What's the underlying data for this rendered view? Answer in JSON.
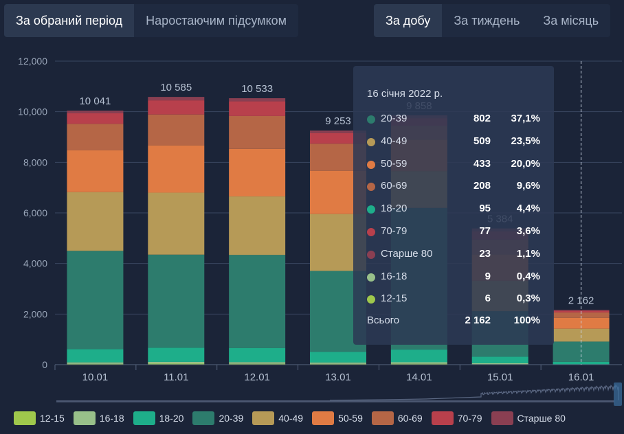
{
  "tabs_left": [
    {
      "label": "За обраний період",
      "active": true
    },
    {
      "label": "Наростаючим підсумком",
      "active": false
    }
  ],
  "tabs_right": [
    {
      "label": "За добу",
      "active": true
    },
    {
      "label": "За тиждень",
      "active": false
    },
    {
      "label": "За місяць",
      "active": false
    }
  ],
  "chart_data": {
    "type": "bar",
    "stacked": true,
    "title": "",
    "xlabel": "",
    "ylabel": "",
    "ylim": [
      0,
      12000
    ],
    "yticks": [
      "0",
      "2,000",
      "4,000",
      "6,000",
      "8,000",
      "10,000",
      "12,000"
    ],
    "categories": [
      "10.01",
      "11.01",
      "12.01",
      "13.01",
      "14.01",
      "15.01",
      "16.01"
    ],
    "totals": [
      "10 041",
      "10 585",
      "10 533",
      "9 253",
      "9 858",
      "5 384",
      "2 162"
    ],
    "grid": true,
    "legend_position": "bottom",
    "highlighted_category": "16.01",
    "series": [
      {
        "name": "12-15",
        "color": "#9fc84c",
        "values": [
          30,
          40,
          35,
          30,
          35,
          20,
          6
        ]
      },
      {
        "name": "16-18",
        "color": "#98c08a",
        "values": [
          60,
          70,
          65,
          55,
          60,
          35,
          9
        ]
      },
      {
        "name": "18-20",
        "color": "#1eae8a",
        "values": [
          520,
          560,
          560,
          420,
          500,
          260,
          95
        ]
      },
      {
        "name": "20-39",
        "color": "#2d7c6d",
        "values": [
          3890,
          3680,
          3680,
          3200,
          5600,
          1800,
          802
        ]
      },
      {
        "name": "40-49",
        "color": "#b69a57",
        "values": [
          2320,
          2450,
          2310,
          2250,
          1450,
          1200,
          509
        ]
      },
      {
        "name": "50-59",
        "color": "#e07b44",
        "values": [
          1660,
          1870,
          1880,
          1710,
          1250,
          1050,
          433
        ]
      },
      {
        "name": "60-69",
        "color": "#b56646",
        "values": [
          1040,
          1220,
          1300,
          1070,
          550,
          580,
          208
        ]
      },
      {
        "name": "70-79",
        "color": "#b8404c",
        "values": [
          420,
          560,
          580,
          420,
          300,
          330,
          77
        ]
      },
      {
        "name": "Старше 80",
        "color": "#8a3f52",
        "values": [
          100,
          135,
          123,
          98,
          113,
          109,
          23
        ]
      }
    ]
  },
  "tooltip": {
    "title": "16 січня 2022 р.",
    "rows": [
      {
        "label": "20-39",
        "value": "802",
        "percent": "37,1%",
        "color": "#2d7c6d"
      },
      {
        "label": "40-49",
        "value": "509",
        "percent": "23,5%",
        "color": "#b69a57"
      },
      {
        "label": "50-59",
        "value": "433",
        "percent": "20,0%",
        "color": "#e07b44"
      },
      {
        "label": "60-69",
        "value": "208",
        "percent": "9,6%",
        "color": "#b56646"
      },
      {
        "label": "18-20",
        "value": "95",
        "percent": "4,4%",
        "color": "#1eae8a"
      },
      {
        "label": "70-79",
        "value": "77",
        "percent": "3,6%",
        "color": "#b8404c"
      },
      {
        "label": "Старше 80",
        "value": "23",
        "percent": "1,1%",
        "color": "#8a3f52"
      },
      {
        "label": "16-18",
        "value": "9",
        "percent": "0,4%",
        "color": "#98c08a"
      },
      {
        "label": "12-15",
        "value": "6",
        "percent": "0,3%",
        "color": "#9fc84c"
      }
    ],
    "total_label": "Всього",
    "total_value": "2 162",
    "total_percent": "100%"
  }
}
